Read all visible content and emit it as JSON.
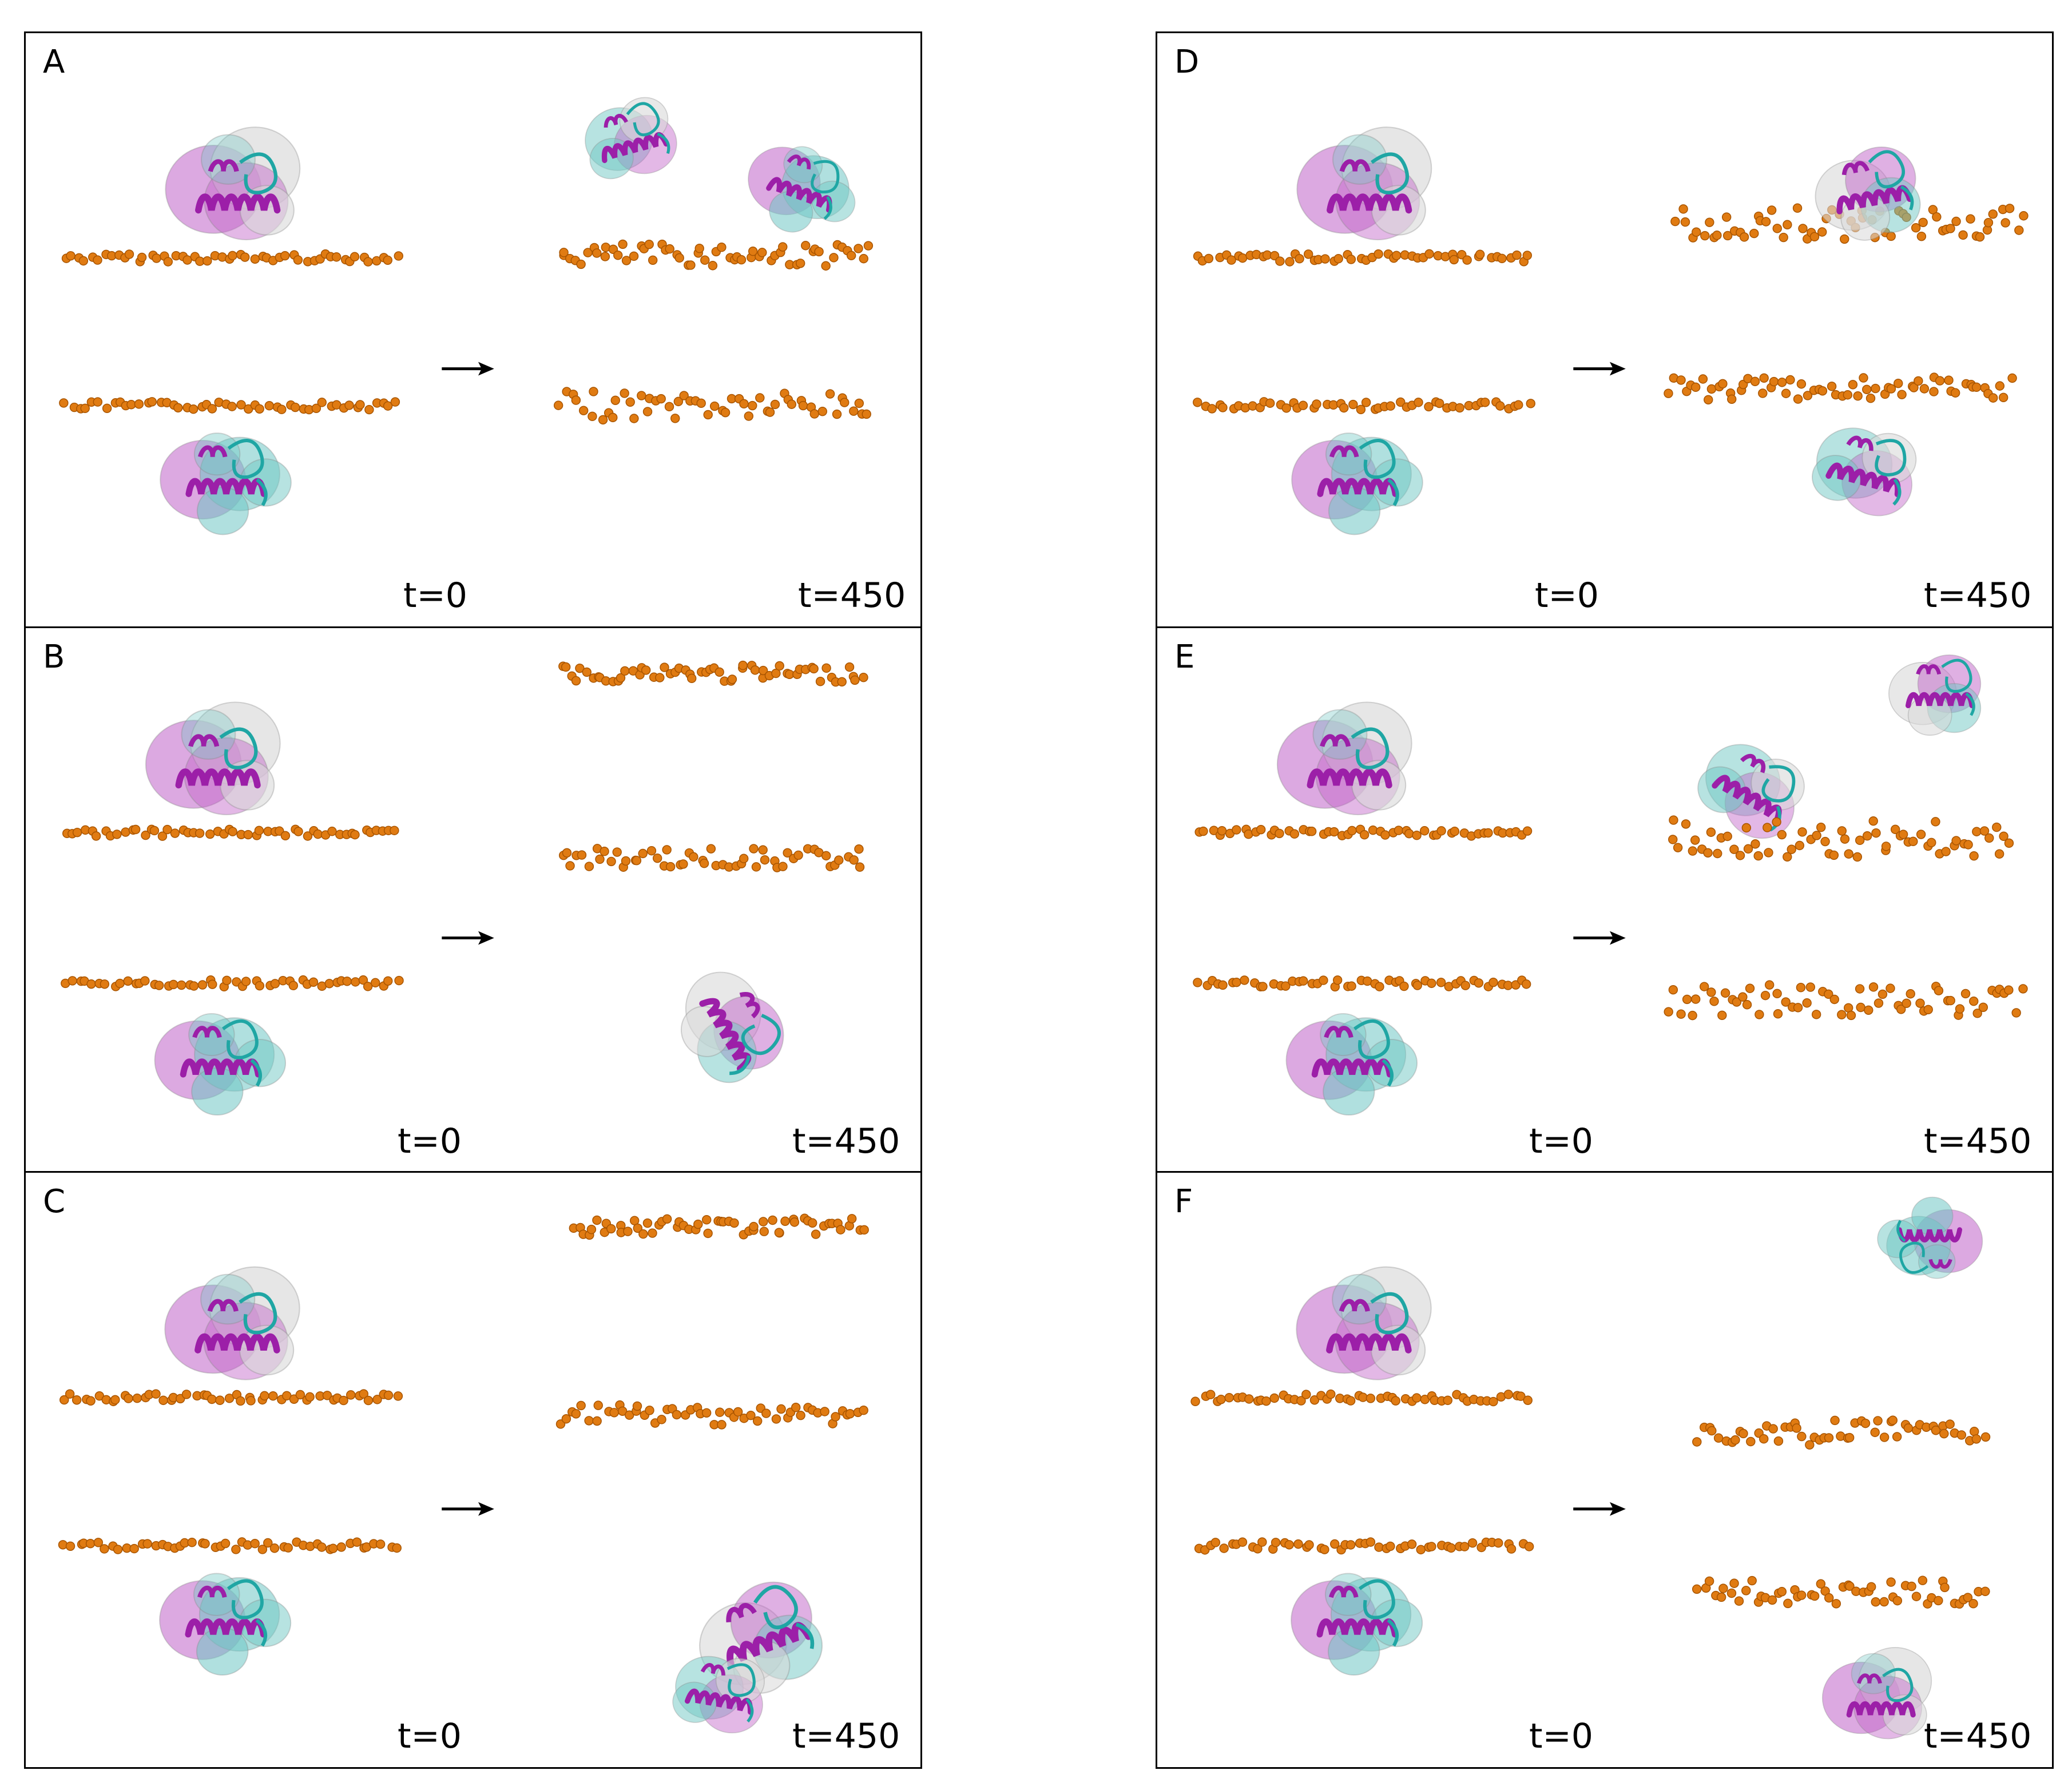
{
  "figure": {
    "panels": [
      {
        "letter": "A",
        "t_start": "t=0",
        "t_end": "t=450"
      },
      {
        "letter": "B",
        "t_start": "t=0",
        "t_end": "t=450"
      },
      {
        "letter": "C",
        "t_start": "t=0",
        "t_end": "t=450"
      },
      {
        "letter": "D",
        "t_start": "t=0",
        "t_end": "t=450"
      },
      {
        "letter": "E",
        "t_start": "t=0",
        "t_end": "t=450"
      },
      {
        "letter": "F",
        "t_start": "t=0",
        "t_end": "t=450"
      }
    ],
    "colors": {
      "lipid": "#e07b12",
      "lipid_dark": "#a85400",
      "helix": "#9c1fa8",
      "magenta_surface": "#c062c8",
      "cyan_surface": "#6fc7c4",
      "cyan_ribbon": "#1fa6a4",
      "white_surface": "#d9d9d9",
      "blue_accent": "#2436b8",
      "arrow": "#000000"
    }
  }
}
